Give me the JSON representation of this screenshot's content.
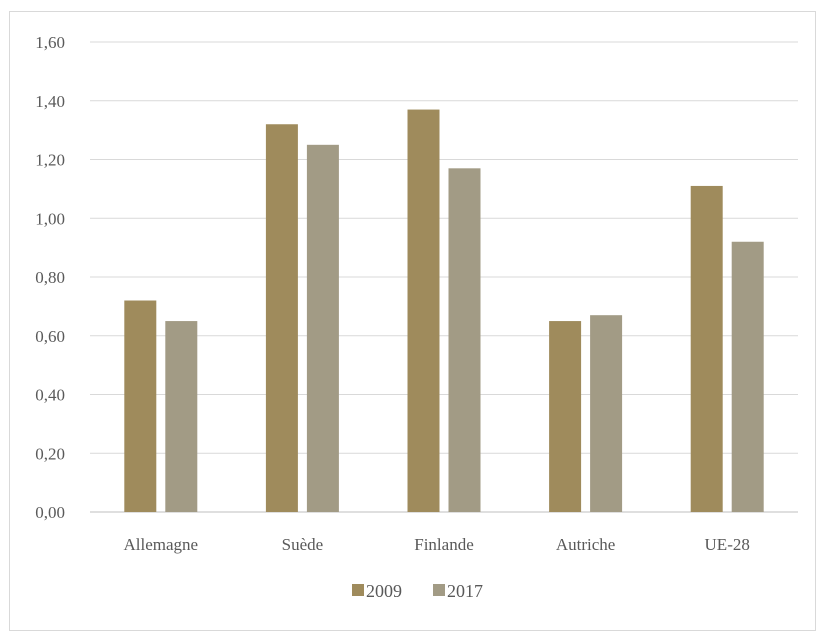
{
  "chart_data": {
    "type": "bar",
    "categories": [
      "Allemagne",
      "Suède",
      "Finlande",
      "Autriche",
      "UE-28"
    ],
    "series": [
      {
        "name": "2009",
        "values": [
          0.72,
          1.32,
          1.37,
          0.65,
          1.11
        ],
        "color": "#9f8b5c"
      },
      {
        "name": "2017",
        "values": [
          0.65,
          1.25,
          1.17,
          0.67,
          0.92
        ],
        "color": "#a29b85"
      }
    ],
    "ylim": [
      0,
      1.6
    ],
    "yticks": [
      "0,00",
      "0,20",
      "0,40",
      "0,60",
      "0,80",
      "1,00",
      "1,20",
      "1,40",
      "1,60"
    ],
    "title": "",
    "xlabel": "",
    "ylabel": "",
    "grid": true,
    "legend_position": "bottom-center"
  }
}
